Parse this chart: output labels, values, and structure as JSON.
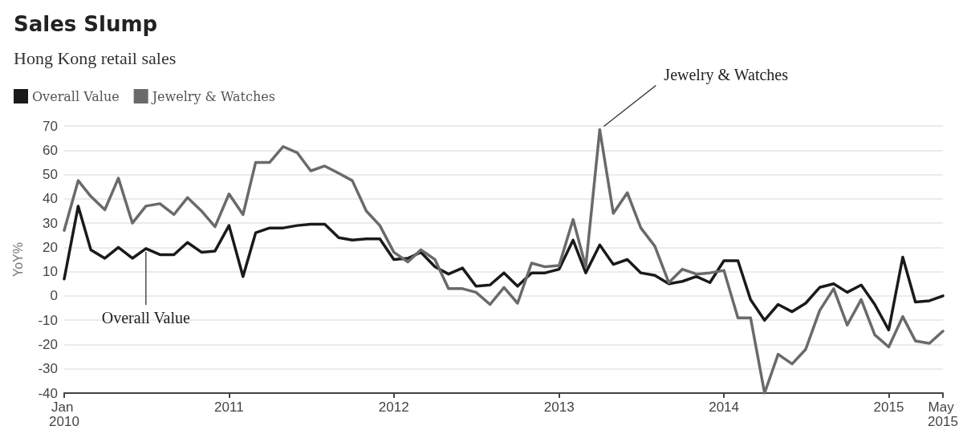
{
  "chart_data": {
    "type": "line",
    "title": "Sales Slump",
    "subtitle": "Hong Kong retail sales",
    "ylabel": "YoY%",
    "x": [
      "2010-01",
      "2010-02",
      "2010-03",
      "2010-04",
      "2010-05",
      "2010-06",
      "2010-07",
      "2010-08",
      "2010-09",
      "2010-10",
      "2010-11",
      "2010-12",
      "2011-01",
      "2011-02",
      "2011-03",
      "2011-04",
      "2011-05",
      "2011-06",
      "2011-07",
      "2011-08",
      "2011-09",
      "2011-10",
      "2011-11",
      "2011-12",
      "2012-01",
      "2012-02",
      "2012-03",
      "2012-04",
      "2012-05",
      "2012-06",
      "2012-07",
      "2012-08",
      "2012-09",
      "2012-10",
      "2012-11",
      "2012-12",
      "2013-01",
      "2013-02",
      "2013-03",
      "2013-04",
      "2013-05",
      "2013-06",
      "2013-07",
      "2013-08",
      "2013-09",
      "2013-10",
      "2013-11",
      "2013-12",
      "2014-01",
      "2014-02",
      "2014-03",
      "2014-04",
      "2014-05",
      "2014-06",
      "2014-07",
      "2014-08",
      "2014-09",
      "2014-10",
      "2014-11",
      "2014-12",
      "2015-01",
      "2015-02",
      "2015-03",
      "2015-04",
      "2015-05"
    ],
    "series": [
      {
        "name": "Overall Value",
        "color": "#1a1a1a",
        "values": [
          7,
          37,
          19,
          15.5,
          20,
          15.5,
          19.5,
          17,
          17,
          22,
          18,
          18.5,
          29,
          8,
          26,
          28,
          28,
          29,
          29.5,
          29.5,
          24,
          23,
          23.5,
          23.5,
          15,
          15.5,
          18,
          12,
          9,
          11.5,
          4,
          4.5,
          9.5,
          4,
          9.5,
          9.5,
          11,
          23,
          9.5,
          21,
          13,
          15,
          9.5,
          8.5,
          5,
          6,
          8,
          5.5,
          14.5,
          14.5,
          -1.5,
          -10,
          -3.5,
          -6.5,
          -3,
          3.5,
          5,
          1.5,
          4.5,
          -3.5,
          -14,
          16,
          -2.5,
          -2,
          0
        ]
      },
      {
        "name": "Jewelry & Watches",
        "color": "#6a6a6a",
        "values": [
          27,
          47.5,
          41,
          35.5,
          48.5,
          30,
          37,
          38,
          33.5,
          40.5,
          35,
          28.5,
          42,
          33.5,
          55,
          55,
          61.5,
          59,
          51.5,
          53.5,
          50.5,
          47.5,
          35,
          29,
          18,
          14,
          19,
          15,
          3,
          3,
          1.5,
          -3.5,
          3.5,
          -3,
          13.5,
          12,
          12.5,
          31.5,
          12,
          68.5,
          34,
          42.5,
          28,
          20.5,
          5.5,
          11,
          9,
          9.5,
          10.5,
          -9,
          -9,
          -40,
          -24,
          -28,
          -22,
          -6,
          3,
          -12,
          -1.5,
          -16,
          -21,
          -8.5,
          -18.5,
          -19.5,
          -14.5
        ]
      }
    ],
    "xlim": [
      "2010-01",
      "2015-05"
    ],
    "xticks": [
      {
        "value": "2010-01",
        "label": "Jan 2010"
      },
      {
        "value": "2011-01",
        "label": "2011"
      },
      {
        "value": "2012-01",
        "label": "2012"
      },
      {
        "value": "2013-01",
        "label": "2013"
      },
      {
        "value": "2014-01",
        "label": "2014"
      },
      {
        "value": "2015-01",
        "label": "2015"
      },
      {
        "value": "2015-05",
        "label": "May 2015"
      }
    ],
    "ylim": [
      -40,
      70
    ],
    "yticks": [
      -40,
      -30,
      -20,
      -10,
      0,
      10,
      20,
      30,
      40,
      50,
      60,
      70
    ],
    "grid": "y",
    "legend": "top left",
    "marker": "none",
    "line_style": "solid",
    "annotations": [
      {
        "text": "Overall Value",
        "x": "2010-07",
        "y": 19.5
      },
      {
        "text": "Jewelry & Watches",
        "x": "2013-04",
        "y": 68.5
      }
    ]
  }
}
